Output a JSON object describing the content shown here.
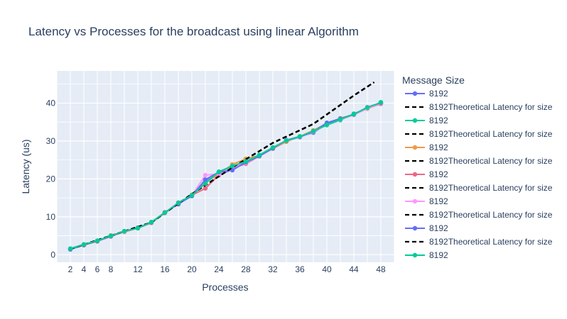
{
  "chart_data": {
    "type": "line",
    "title": "Latency vs Processes for the broadcast using linear Algorithm",
    "xlabel": "Processes",
    "ylabel": "Latency (us)",
    "xlim": [
      0,
      50
    ],
    "ylim": [
      -2,
      48.5
    ],
    "x_ticks": [
      2,
      4,
      6,
      8,
      12,
      16,
      20,
      24,
      28,
      32,
      36,
      40,
      44,
      48
    ],
    "y_ticks": [
      0,
      10,
      20,
      30,
      40
    ],
    "grid": true,
    "legend_title": "Message Size",
    "legend_position": "right",
    "series": [
      {
        "name": "8192",
        "kind": "measured",
        "color": "#636efa",
        "x": [
          2,
          4,
          6,
          8,
          10,
          12,
          14,
          16,
          18,
          20,
          22,
          24,
          26,
          28,
          30,
          32,
          34,
          36,
          38,
          40,
          42,
          44,
          46,
          48
        ],
        "y": [
          1.5,
          2.6,
          3.6,
          4.9,
          6.2,
          7.0,
          8.5,
          11.0,
          13.5,
          15.5,
          19.5,
          21.0,
          22.5,
          24.5,
          26.2,
          28.0,
          30.2,
          31.2,
          32.2,
          34.5,
          35.8,
          37.0,
          38.8,
          40.0
        ]
      },
      {
        "name": "8192Theoretical Latency for size",
        "kind": "theoretical",
        "color": "#000000",
        "x": [
          2,
          8,
          14,
          20,
          26,
          32,
          38,
          44,
          47
        ],
        "y": [
          1.5,
          5.0,
          8.5,
          16.0,
          23.0,
          29.5,
          34.5,
          42.0,
          45.5
        ]
      },
      {
        "name": "8192",
        "kind": "measured",
        "color": "#00cc96",
        "x": [
          2,
          4,
          6,
          8,
          10,
          12,
          14,
          16,
          18,
          20,
          22,
          24,
          26,
          28,
          30,
          32,
          34,
          36,
          38,
          40,
          42,
          44,
          46,
          48
        ],
        "y": [
          1.6,
          2.7,
          3.7,
          5.0,
          6.1,
          7.1,
          8.6,
          11.1,
          13.6,
          15.6,
          19.0,
          21.5,
          23.0,
          24.3,
          26.0,
          28.2,
          30.0,
          31.0,
          32.5,
          34.2,
          35.5,
          37.2,
          38.6,
          40.2
        ]
      },
      {
        "name": "8192Theoretical Latency for size",
        "kind": "theoretical",
        "color": "#000000",
        "x": [
          2,
          8,
          14,
          20,
          26,
          32,
          38,
          44,
          47
        ],
        "y": [
          1.5,
          5.0,
          8.5,
          16.0,
          23.0,
          29.5,
          34.5,
          42.0,
          45.5
        ]
      },
      {
        "name": "8192",
        "kind": "measured",
        "color": "#ef9a4a",
        "x": [
          2,
          4,
          6,
          8,
          10,
          12,
          14,
          16,
          18,
          20,
          22,
          24,
          26,
          28,
          30,
          32,
          34,
          36,
          38,
          40,
          42,
          44,
          46,
          48
        ],
        "y": [
          1.5,
          2.6,
          3.5,
          5.1,
          6.0,
          7.0,
          8.4,
          11.0,
          13.5,
          15.8,
          19.2,
          21.2,
          23.8,
          25.3,
          26.2,
          28.0,
          29.8,
          31.2,
          32.8,
          34.6,
          36.0,
          37.0,
          38.5,
          39.9
        ]
      },
      {
        "name": "8192Theoretical Latency for size",
        "kind": "theoretical",
        "color": "#000000",
        "x": [
          2,
          8,
          14,
          20,
          26,
          32,
          38,
          44,
          47
        ],
        "y": [
          1.5,
          5.0,
          8.5,
          16.0,
          23.0,
          29.5,
          34.5,
          42.0,
          45.5
        ]
      },
      {
        "name": "8192",
        "kind": "measured",
        "color": "#ef6585",
        "x": [
          2,
          4,
          6,
          8,
          10,
          12,
          14,
          16,
          18,
          20,
          22,
          24,
          26,
          28,
          30,
          32,
          34,
          36,
          38,
          40,
          42,
          44,
          46,
          48
        ],
        "y": [
          1.5,
          2.5,
          3.6,
          4.8,
          6.1,
          7.0,
          8.5,
          11.2,
          13.3,
          15.7,
          17.5,
          21.0,
          22.8,
          24.0,
          26.0,
          28.0,
          30.0,
          31.1,
          32.6,
          34.4,
          35.8,
          37.1,
          38.7,
          39.8
        ]
      },
      {
        "name": "8192Theoretical Latency for size",
        "kind": "theoretical",
        "color": "#000000",
        "x": [
          2,
          8,
          14,
          20,
          26,
          32,
          38,
          44,
          47
        ],
        "y": [
          1.5,
          5.0,
          8.5,
          16.0,
          23.0,
          29.5,
          34.5,
          42.0,
          45.5
        ]
      },
      {
        "name": "8192",
        "kind": "measured",
        "color": "#ff97ff",
        "x": [
          2,
          4,
          6,
          8,
          10,
          12,
          14,
          16,
          18,
          20,
          22,
          24,
          26,
          28,
          30,
          32,
          34,
          36,
          38,
          40,
          42,
          44,
          46,
          48
        ],
        "y": [
          1.6,
          2.6,
          3.7,
          4.9,
          6.1,
          7.0,
          8.6,
          11.0,
          13.8,
          15.6,
          21.0,
          21.3,
          23.0,
          24.2,
          26.1,
          28.1,
          30.1,
          31.0,
          32.4,
          34.3,
          35.6,
          36.9,
          38.6,
          40.0
        ]
      },
      {
        "name": "8192Theoretical Latency for size",
        "kind": "theoretical",
        "color": "#000000",
        "x": [
          2,
          8,
          14,
          20,
          26,
          32,
          38,
          44,
          47
        ],
        "y": [
          1.5,
          5.0,
          8.5,
          16.0,
          23.0,
          29.5,
          34.5,
          42.0,
          45.5
        ]
      },
      {
        "name": "8192",
        "kind": "measured",
        "color": "#636efa",
        "x": [
          2,
          4,
          6,
          8,
          10,
          12,
          14,
          16,
          18,
          20,
          22,
          24,
          26,
          28,
          30,
          32,
          34,
          36,
          38,
          40,
          42,
          44,
          46,
          48
        ],
        "y": [
          1.4,
          2.6,
          3.6,
          4.9,
          6.2,
          7.1,
          8.5,
          11.1,
          13.4,
          15.5,
          19.8,
          21.8,
          22.3,
          24.4,
          26.0,
          28.1,
          30.2,
          31.1,
          32.5,
          34.8,
          35.9,
          37.0,
          38.9,
          40.1
        ]
      },
      {
        "name": "8192Theoretical Latency for size",
        "kind": "theoretical",
        "color": "#000000",
        "x": [
          2,
          8,
          14,
          20,
          26,
          32,
          38,
          44,
          47
        ],
        "y": [
          1.5,
          5.0,
          8.5,
          16.0,
          23.0,
          29.5,
          34.5,
          42.0,
          45.5
        ]
      },
      {
        "name": "8192",
        "kind": "measured",
        "color": "#00cc96",
        "x": [
          2,
          4,
          6,
          8,
          10,
          12,
          14,
          16,
          18,
          20,
          22,
          24,
          26,
          28,
          30,
          32,
          34,
          36,
          38,
          40,
          42,
          44,
          46,
          48
        ],
        "y": [
          1.6,
          2.7,
          3.7,
          5.0,
          6.2,
          7.0,
          8.6,
          11.1,
          13.7,
          15.7,
          18.8,
          21.9,
          23.4,
          24.6,
          26.3,
          28.3,
          30.1,
          31.2,
          32.6,
          34.3,
          35.7,
          37.1,
          38.8,
          40.2
        ]
      }
    ]
  }
}
